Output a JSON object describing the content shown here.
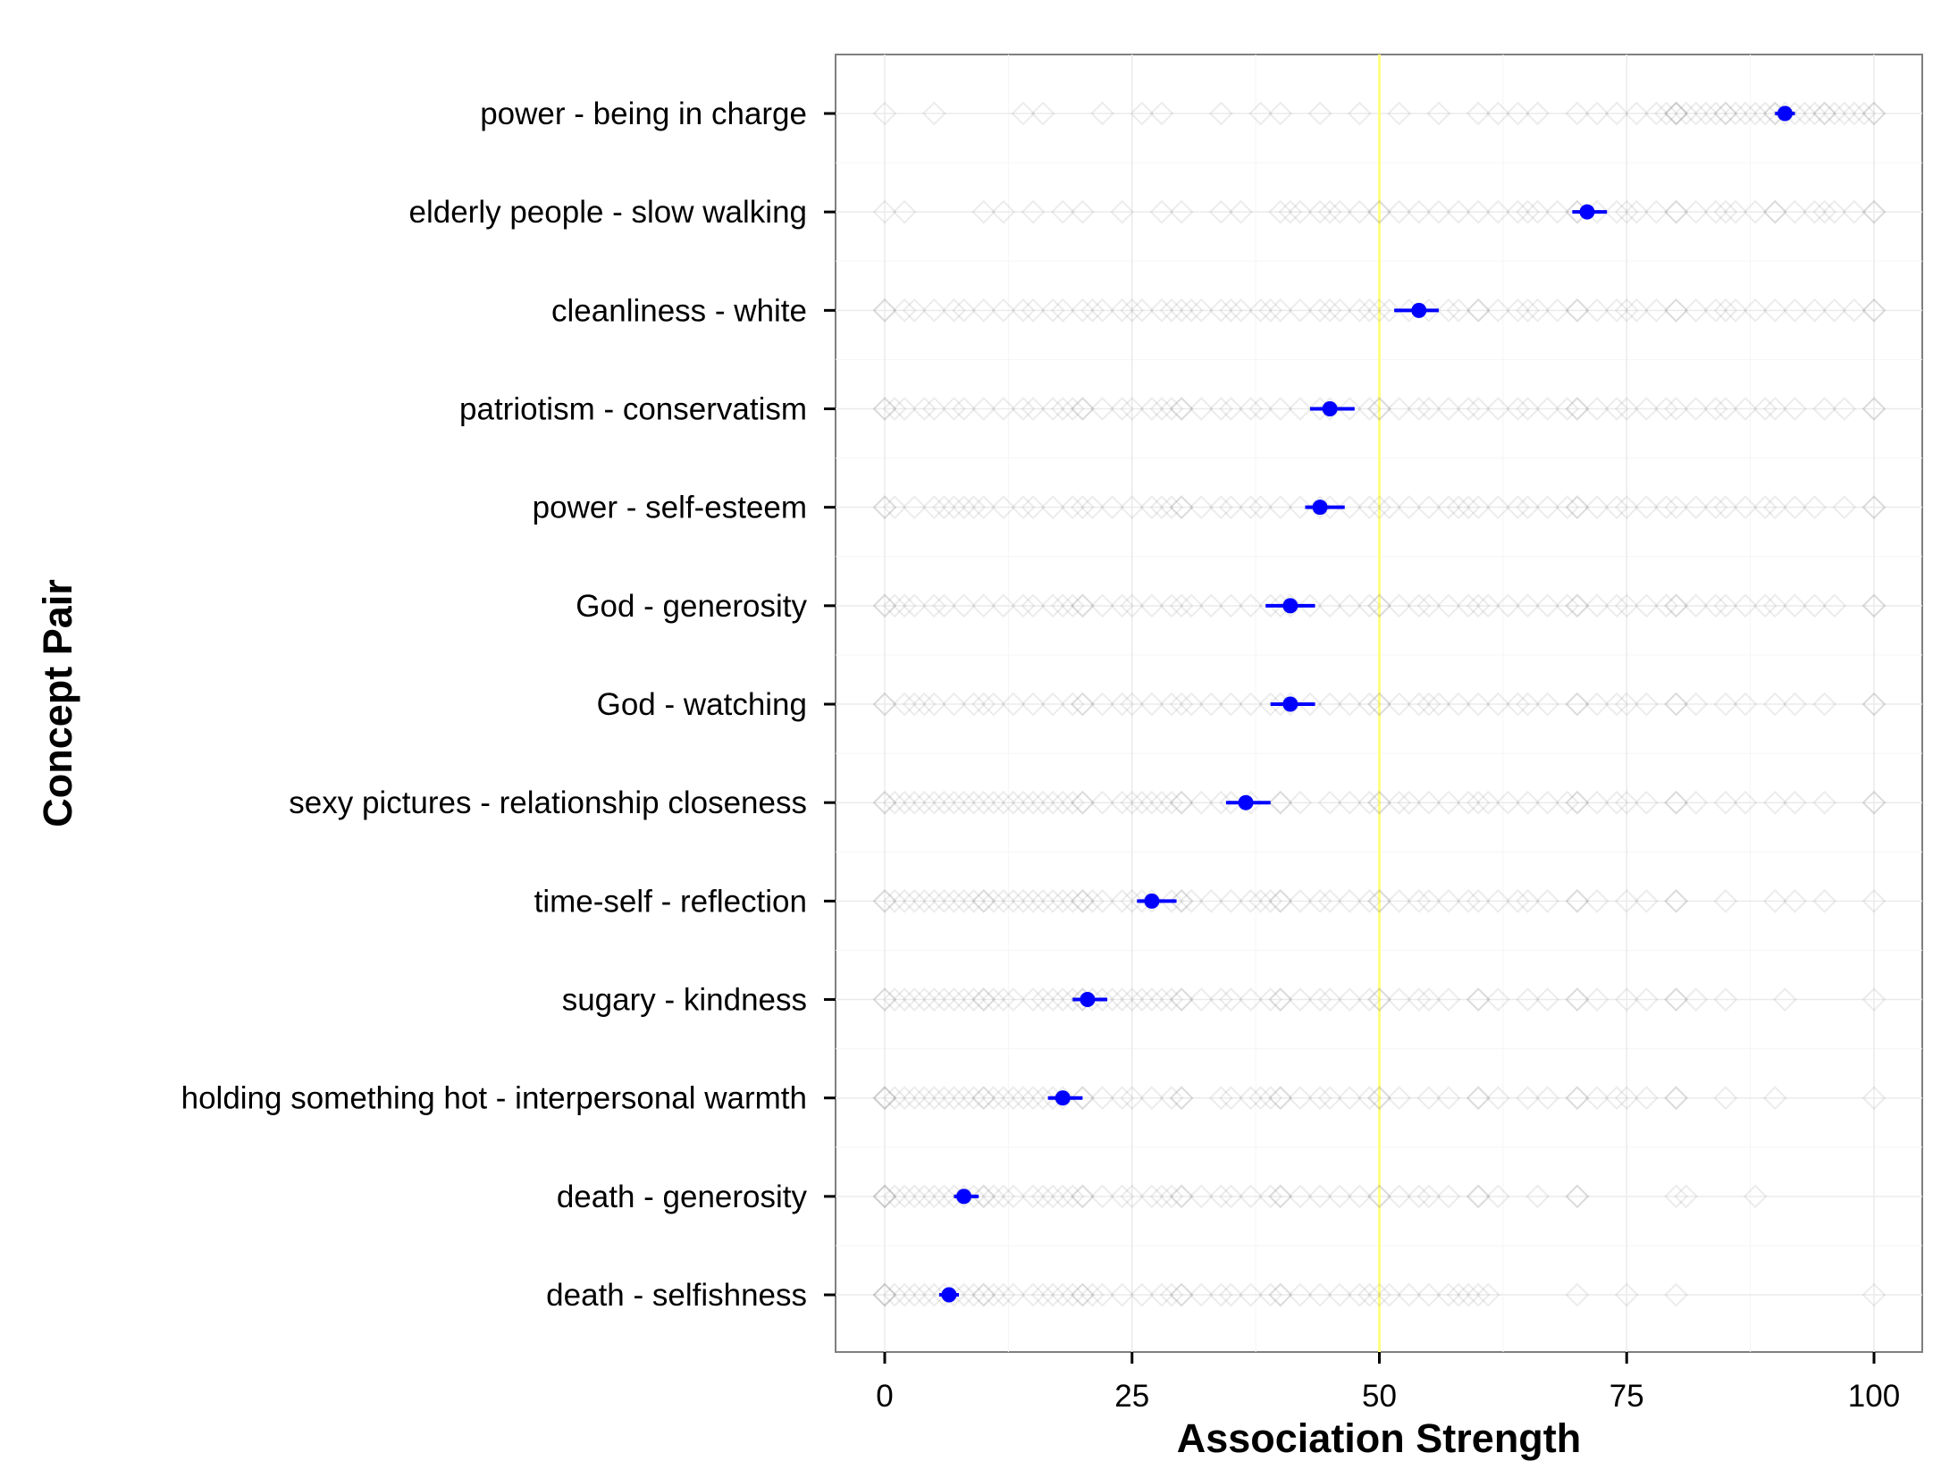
{
  "chart_data": {
    "type": "scatter",
    "xlabel": "Association Strength",
    "ylabel": "Concept Pair",
    "xlim": [
      0,
      100
    ],
    "x_ticks": [
      0,
      25,
      50,
      75,
      100
    ],
    "x_tick_labels": [
      "0",
      "25",
      "50",
      "75",
      "100"
    ],
    "reference_line": {
      "x": 50,
      "color": "#ffff80"
    },
    "mean_color": "#0000ff",
    "raw_marker_color": "#7f7f7f",
    "grid": true,
    "categories": [
      "power - being in charge",
      "elderly people - slow walking",
      "cleanliness - white",
      "patriotism - conservatism",
      "power - self-esteem",
      "God - generosity",
      "God - watching",
      "sexy pictures - relationship closeness",
      "time-self - reflection",
      "sugary - kindness",
      "holding something hot - interpersonal warmth",
      "death - generosity",
      "death - selfishness"
    ],
    "means": [
      91,
      71,
      54,
      45,
      44,
      41,
      41,
      36.5,
      27,
      20.5,
      18,
      8,
      6.5
    ],
    "ci_low": [
      90,
      69.5,
      51.5,
      43,
      42.5,
      38.5,
      39,
      34.5,
      25.5,
      19,
      16.5,
      7,
      5.5
    ],
    "ci_high": [
      92,
      73,
      56,
      47.5,
      46.5,
      43.5,
      43.5,
      39,
      29.5,
      22.5,
      20,
      9.5,
      7.5
    ],
    "raw_points": [
      [
        0,
        5,
        14,
        16,
        22,
        26,
        28,
        34,
        38,
        40,
        44,
        48,
        52,
        56,
        60,
        62,
        64,
        66,
        70,
        72,
        74,
        76,
        78,
        79,
        80,
        81,
        82,
        83,
        84,
        85,
        86,
        87,
        88,
        89,
        90,
        91,
        92,
        93,
        94,
        95,
        96,
        97,
        98,
        99,
        100,
        100,
        80,
        80,
        85,
        90,
        95
      ],
      [
        0,
        2,
        10,
        12,
        15,
        18,
        20,
        24,
        28,
        30,
        34,
        36,
        40,
        41,
        42,
        44,
        45,
        46,
        48,
        50,
        50,
        52,
        54,
        56,
        58,
        60,
        62,
        64,
        65,
        66,
        68,
        70,
        70,
        72,
        74,
        75,
        76,
        78,
        80,
        80,
        82,
        84,
        85,
        86,
        88,
        90,
        90,
        92,
        94,
        95,
        96,
        98,
        100,
        100
      ],
      [
        0,
        0,
        2,
        3,
        5,
        7,
        8,
        10,
        12,
        14,
        15,
        17,
        18,
        20,
        21,
        22,
        24,
        25,
        26,
        28,
        29,
        30,
        31,
        32,
        34,
        35,
        36,
        38,
        39,
        40,
        42,
        44,
        45,
        46,
        48,
        49,
        50,
        51,
        53,
        55,
        57,
        58,
        60,
        60,
        62,
        64,
        65,
        66,
        68,
        70,
        70,
        72,
        74,
        75,
        76,
        78,
        80,
        80,
        82,
        84,
        85,
        86,
        88,
        90,
        92,
        94,
        96,
        98,
        100,
        100
      ],
      [
        0,
        0,
        1,
        2,
        4,
        5,
        7,
        8,
        10,
        12,
        14,
        15,
        17,
        18,
        19,
        20,
        20,
        22,
        24,
        25,
        27,
        28,
        29,
        30,
        30,
        32,
        34,
        35,
        37,
        38,
        40,
        42,
        44,
        45,
        47,
        49,
        50,
        50,
        52,
        54,
        55,
        57,
        59,
        60,
        62,
        64,
        65,
        67,
        69,
        70,
        70,
        72,
        74,
        75,
        77,
        79,
        80,
        82,
        84,
        85,
        87,
        89,
        90,
        92,
        95,
        97,
        100,
        100
      ],
      [
        0,
        0,
        1,
        3,
        5,
        6,
        7,
        8,
        9,
        10,
        12,
        14,
        15,
        17,
        19,
        20,
        21,
        23,
        25,
        27,
        28,
        29,
        30,
        30,
        32,
        34,
        35,
        37,
        38,
        40,
        42,
        44,
        45,
        47,
        49,
        50,
        51,
        53,
        55,
        57,
        58,
        59,
        60,
        62,
        64,
        65,
        67,
        69,
        70,
        70,
        72,
        74,
        75,
        77,
        79,
        80,
        82,
        84,
        85,
        87,
        89,
        90,
        92,
        94,
        97,
        100,
        100
      ],
      [
        0,
        0,
        1,
        2,
        3,
        5,
        6,
        8,
        10,
        12,
        14,
        15,
        17,
        18,
        19,
        20,
        20,
        22,
        24,
        25,
        27,
        29,
        30,
        31,
        33,
        35,
        37,
        39,
        40,
        41,
        43,
        45,
        47,
        49,
        50,
        50,
        52,
        54,
        55,
        57,
        59,
        60,
        61,
        63,
        65,
        67,
        69,
        70,
        70,
        72,
        74,
        75,
        77,
        79,
        80,
        80,
        82,
        84,
        85,
        87,
        89,
        90,
        92,
        94,
        96,
        100,
        100
      ],
      [
        0,
        0,
        2,
        3,
        4,
        5,
        7,
        9,
        10,
        11,
        13,
        15,
        17,
        19,
        20,
        20,
        22,
        24,
        25,
        27,
        29,
        30,
        31,
        33,
        35,
        37,
        39,
        40,
        41,
        43,
        45,
        47,
        49,
        50,
        50,
        52,
        54,
        55,
        56,
        58,
        60,
        62,
        64,
        65,
        67,
        70,
        70,
        72,
        74,
        75,
        77,
        80,
        80,
        82,
        85,
        87,
        90,
        92,
        95,
        100,
        100
      ],
      [
        0,
        0,
        1,
        2,
        3,
        4,
        5,
        6,
        7,
        8,
        9,
        10,
        11,
        12,
        13,
        14,
        15,
        16,
        17,
        18,
        19,
        20,
        20,
        22,
        24,
        25,
        26,
        27,
        28,
        29,
        30,
        30,
        32,
        34,
        35,
        37,
        40,
        40,
        42,
        45,
        47,
        49,
        50,
        50,
        52,
        53,
        55,
        57,
        59,
        60,
        61,
        63,
        65,
        67,
        69,
        70,
        70,
        72,
        74,
        75,
        77,
        80,
        80,
        82,
        85,
        87,
        90,
        92,
        95,
        100,
        100
      ],
      [
        0,
        0,
        1,
        2,
        3,
        4,
        5,
        6,
        7,
        8,
        9,
        10,
        10,
        11,
        12,
        13,
        14,
        15,
        16,
        17,
        18,
        19,
        20,
        20,
        21,
        22,
        24,
        25,
        26,
        27,
        29,
        30,
        30,
        31,
        33,
        35,
        37,
        38,
        39,
        40,
        40,
        42,
        44,
        45,
        47,
        49,
        50,
        50,
        52,
        54,
        55,
        57,
        59,
        60,
        62,
        64,
        65,
        67,
        70,
        70,
        72,
        75,
        77,
        80,
        80,
        85,
        90,
        92,
        95,
        100
      ],
      [
        0,
        0,
        1,
        2,
        3,
        4,
        5,
        6,
        7,
        8,
        9,
        10,
        10,
        11,
        12,
        13,
        15,
        16,
        17,
        18,
        19,
        20,
        20,
        21,
        22,
        23,
        24,
        25,
        26,
        27,
        28,
        29,
        30,
        30,
        32,
        34,
        35,
        37,
        39,
        40,
        40,
        42,
        44,
        45,
        47,
        49,
        50,
        50,
        52,
        54,
        55,
        57,
        60,
        60,
        62,
        65,
        67,
        70,
        70,
        72,
        75,
        77,
        80,
        80,
        82,
        85,
        91,
        100
      ],
      [
        0,
        0,
        0,
        1,
        2,
        3,
        4,
        5,
        6,
        7,
        8,
        9,
        10,
        10,
        11,
        12,
        13,
        14,
        15,
        16,
        17,
        18,
        20,
        20,
        22,
        24,
        25,
        27,
        29,
        30,
        30,
        34,
        35,
        37,
        38,
        39,
        40,
        40,
        42,
        44,
        45,
        47,
        49,
        50,
        50,
        52,
        55,
        57,
        60,
        60,
        62,
        65,
        67,
        70,
        70,
        72,
        74,
        75,
        77,
        80,
        80,
        85,
        90,
        100
      ],
      [
        0,
        0,
        0,
        1,
        2,
        3,
        4,
        5,
        6,
        7,
        8,
        9,
        10,
        10,
        11,
        12,
        13,
        15,
        16,
        17,
        18,
        19,
        20,
        20,
        22,
        24,
        25,
        27,
        28,
        29,
        30,
        30,
        32,
        34,
        35,
        37,
        39,
        40,
        40,
        42,
        44,
        46,
        48,
        50,
        50,
        52,
        54,
        55,
        57,
        60,
        60,
        62,
        66,
        70,
        70,
        80,
        81,
        88
      ],
      [
        0,
        0,
        0,
        1,
        2,
        3,
        4,
        5,
        6,
        7,
        8,
        9,
        10,
        10,
        11,
        12,
        13,
        15,
        16,
        17,
        18,
        19,
        20,
        20,
        21,
        22,
        24,
        26,
        28,
        29,
        30,
        30,
        32,
        34,
        35,
        37,
        39,
        40,
        40,
        42,
        44,
        46,
        48,
        49,
        50,
        51,
        53,
        55,
        57,
        58,
        59,
        60,
        61,
        70,
        75,
        80,
        100
      ]
    ]
  }
}
